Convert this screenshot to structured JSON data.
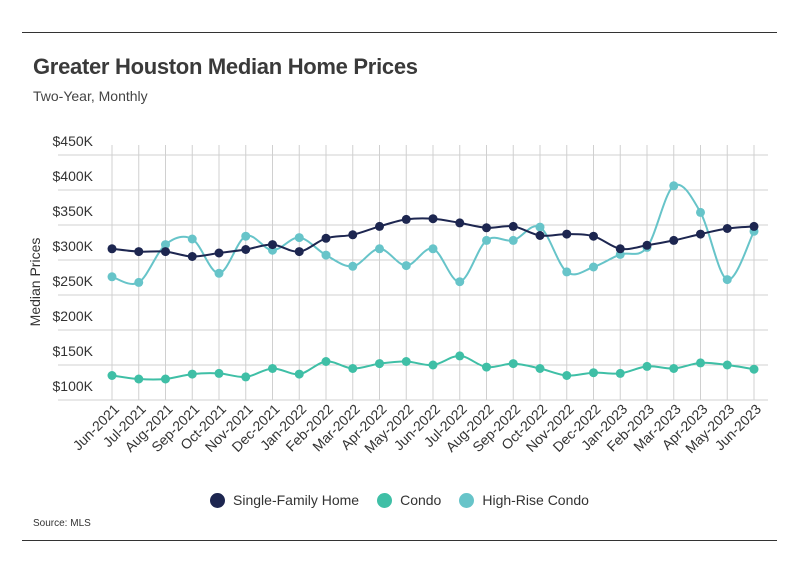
{
  "chart_data": {
    "type": "line",
    "title": "Greater Houston Median Home Prices",
    "subtitle": "Two-Year, Monthly",
    "xlabel": "",
    "ylabel": "Median Prices",
    "ylim": [
      100000,
      450000
    ],
    "yticks": [
      "$100K",
      "$150K",
      "$200K",
      "$250K",
      "$300K",
      "$350K",
      "$400K",
      "$450K"
    ],
    "grid": true,
    "legend_position": "bottom",
    "categories": [
      "Jun-2021",
      "Jul-2021",
      "Aug-2021",
      "Sep-2021",
      "Oct-2021",
      "Nov-2021",
      "Dec-2021",
      "Jan-2022",
      "Feb-2022",
      "Mar-2022",
      "Apr-2022",
      "May-2022",
      "Jun-2022",
      "Jul-2022",
      "Aug-2022",
      "Sep-2022",
      "Oct-2022",
      "Nov-2022",
      "Dec-2022",
      "Jan-2023",
      "Feb-2023",
      "Mar-2023",
      "Apr-2023",
      "May-2023",
      "Jun-2023"
    ],
    "series": [
      {
        "name": "Single-Family Home",
        "color": "#1d2650",
        "values": [
          316000,
          312000,
          312000,
          305000,
          310000,
          315000,
          322000,
          312000,
          331000,
          336000,
          348000,
          358000,
          359000,
          353000,
          346000,
          348000,
          335000,
          337000,
          334000,
          316000,
          321000,
          328000,
          337000,
          345000,
          348000
        ]
      },
      {
        "name": "Condo",
        "color": "#3fbfa6",
        "values": [
          135000,
          130000,
          130000,
          137000,
          138000,
          133000,
          145000,
          137000,
          155000,
          145000,
          152000,
          155000,
          150000,
          163000,
          147000,
          152000,
          145000,
          135000,
          139000,
          138000,
          148000,
          145000,
          153000,
          150000,
          144000
        ]
      },
      {
        "name": "High-Rise Condo",
        "color": "#67c4c9",
        "values": [
          276000,
          268000,
          322000,
          330000,
          281000,
          334000,
          314000,
          332000,
          307000,
          291000,
          316000,
          292000,
          316000,
          269000,
          328000,
          328000,
          347000,
          283000,
          290000,
          308000,
          318000,
          406000,
          368000,
          272000,
          341000
        ]
      }
    ]
  },
  "source": "Source:  MLS"
}
